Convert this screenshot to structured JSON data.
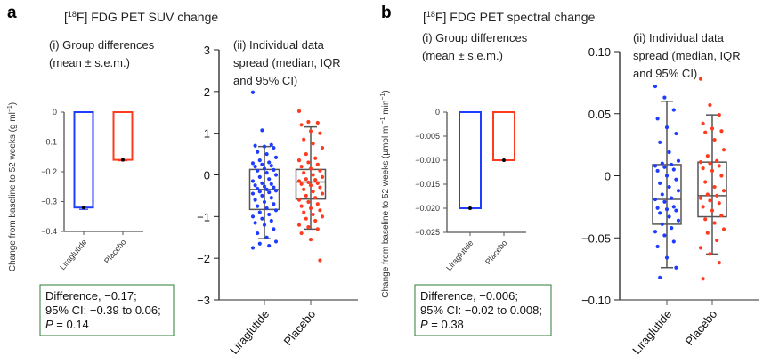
{
  "chart_data": [
    {
      "panel": "a",
      "title_pre": "[",
      "title_sup": "18",
      "title_post": "F] FDG PET SUV change",
      "ylabel": "Change from baseline to 52 weeks (g ml",
      "ylabel_sup": "−1",
      "ylabel_end": ")",
      "charts": [
        {
          "type": "bar",
          "subtitle": [
            "(i) Group differences",
            "(mean ± s.e.m.)"
          ],
          "categories": [
            "Liraglutide",
            "Placebo"
          ],
          "values": [
            -0.32,
            -0.16
          ],
          "sem": [
            0.006,
            0.003
          ],
          "ylim": [
            -0.4,
            0
          ],
          "yticks": [
            "0",
            "−0.1",
            "−0.2",
            "−0.3",
            "−0.4"
          ],
          "ytick_values": [
            0,
            -0.1,
            -0.2,
            -0.3,
            -0.4
          ]
        },
        {
          "type": "box-scatter",
          "subtitle": [
            "(ii) Individual data",
            "spread (median, IQR",
            "and 95% CI)"
          ],
          "categories": [
            "Liraglutide",
            "Placebo"
          ],
          "ylim": [
            -3,
            3
          ],
          "yticks": [
            "3",
            "2",
            "1",
            "0",
            "−1",
            "−2",
            "−3"
          ],
          "ytick_values": [
            3,
            2,
            1,
            0,
            -1,
            -2,
            -3
          ],
          "boxes": [
            {
              "median": -0.35,
              "q1": -0.83,
              "q3": 0.13,
              "ci_low": -1.53,
              "ci_high": 0.68
            },
            {
              "median": -0.17,
              "q1": -0.58,
              "q3": 0.13,
              "ci_low": -1.3,
              "ci_high": 1.15
            }
          ],
          "points": [
            [
              1.98,
              1.07,
              0.72,
              0.7,
              0.68,
              0.65,
              0.55,
              0.5,
              0.42,
              0.35,
              0.3,
              0.28,
              0.25,
              0.22,
              0.2,
              0.15,
              0.12,
              0.1,
              0.05,
              0.0,
              -0.05,
              -0.1,
              -0.15,
              -0.2,
              -0.22,
              -0.25,
              -0.28,
              -0.3,
              -0.33,
              -0.35,
              -0.38,
              -0.4,
              -0.42,
              -0.45,
              -0.5,
              -0.55,
              -0.6,
              -0.65,
              -0.7,
              -0.75,
              -0.8,
              -0.85,
              -0.9,
              -0.95,
              -1.0,
              -1.05,
              -1.1,
              -1.15,
              -1.2,
              -1.3,
              -1.4,
              -1.5,
              -1.6,
              -1.65,
              -1.7,
              -1.75
            ],
            [
              1.53,
              1.27,
              1.25,
              1.2,
              1.05,
              1.0,
              0.85,
              0.75,
              0.65,
              0.5,
              0.4,
              0.35,
              0.3,
              0.25,
              0.2,
              0.15,
              0.1,
              0.05,
              0.0,
              -0.05,
              -0.1,
              -0.12,
              -0.15,
              -0.18,
              -0.2,
              -0.22,
              -0.25,
              -0.3,
              -0.35,
              -0.4,
              -0.45,
              -0.5,
              -0.55,
              -0.6,
              -0.65,
              -0.7,
              -0.75,
              -0.8,
              -0.85,
              -0.9,
              -0.95,
              -1.0,
              -1.05,
              -1.1,
              -1.2,
              -1.25,
              -1.3,
              -1.4,
              -1.55,
              -2.05
            ]
          ]
        }
      ],
      "stats": [
        "Difference, −0.17;",
        "95% CI: −0.39 to 0.06;",
        "P",
        " = 0.14"
      ]
    },
    {
      "panel": "b",
      "title_pre": "[",
      "title_sup": "18",
      "title_post": "F] FDG PET spectral change",
      "ylabel": "Change from baseline to 52 weeks (µmol ml",
      "ylabel_sup": "−1",
      "ylabel_mid": " min",
      "ylabel_sup2": "−1",
      "ylabel_end": ")",
      "charts": [
        {
          "type": "bar",
          "subtitle": [
            "(i) Group differences",
            "(mean ± s.e.m.)"
          ],
          "categories": [
            "Liraglutide",
            "Placebo"
          ],
          "values": [
            -0.02,
            -0.01
          ],
          "sem": [
            0.0001,
            0.0001
          ],
          "ylim": [
            -0.025,
            0
          ],
          "yticks": [
            "0",
            "−0.005",
            "−0.010",
            "−0.015",
            "−0.020",
            "−0.025"
          ],
          "ytick_values": [
            0,
            -0.005,
            -0.01,
            -0.015,
            -0.02,
            -0.025
          ]
        },
        {
          "type": "box-scatter",
          "subtitle": [
            "(ii) Individual data",
            "spread (median, IQR",
            "and 95% CI)"
          ],
          "categories": [
            "Liraglutide",
            "Placebo"
          ],
          "ylim": [
            -0.1,
            0.1
          ],
          "yticks": [
            "0.10",
            "0.05",
            "0",
            "−0.05",
            "−0.10"
          ],
          "ytick_values": [
            0.1,
            0.05,
            0,
            -0.05,
            -0.1
          ],
          "boxes": [
            {
              "median": -0.019,
              "q1": -0.039,
              "q3": 0.009,
              "ci_low": -0.074,
              "ci_high": 0.06
            },
            {
              "median": -0.016,
              "q1": -0.033,
              "q3": 0.011,
              "ci_low": -0.063,
              "ci_high": 0.049
            }
          ],
          "points": [
            [
              0.072,
              0.063,
              0.053,
              0.046,
              0.039,
              0.034,
              0.027,
              0.019,
              0.012,
              0.01,
              0.009,
              0.008,
              0.007,
              0.005,
              0.004,
              0.0,
              -0.003,
              -0.006,
              -0.009,
              -0.012,
              -0.015,
              -0.018,
              -0.019,
              -0.021,
              -0.025,
              -0.026,
              -0.027,
              -0.028,
              -0.03,
              -0.033,
              -0.036,
              -0.039,
              -0.042,
              -0.045,
              -0.048,
              -0.053,
              -0.057,
              -0.066,
              -0.074,
              -0.082
            ],
            [
              0.078,
              0.057,
              0.049,
              0.042,
              0.038,
              0.036,
              0.035,
              0.029,
              0.021,
              0.016,
              0.012,
              0.011,
              0.01,
              0.008,
              0.006,
              0.004,
              0.0,
              -0.005,
              -0.009,
              -0.012,
              -0.015,
              -0.016,
              -0.018,
              -0.02,
              -0.022,
              -0.025,
              -0.028,
              -0.032,
              -0.035,
              -0.038,
              -0.043,
              -0.046,
              -0.052,
              -0.058,
              -0.063,
              -0.07,
              -0.083
            ]
          ]
        }
      ],
      "stats": [
        "Difference, −0.006;",
        "95% CI: −0.02 to 0.008;",
        "P",
        " = 0.38"
      ]
    }
  ],
  "colors": {
    "liraglutide": "#1f3dff",
    "placebo": "#ff3b1f",
    "stats_border": "#2e7d32",
    "axis": "#555555"
  }
}
